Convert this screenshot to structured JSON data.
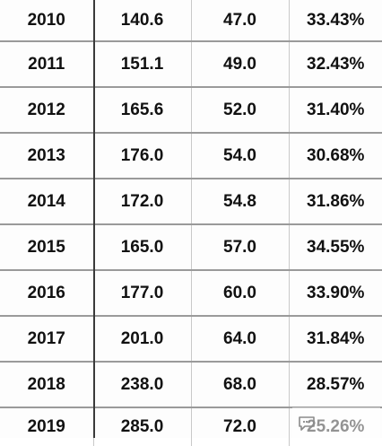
{
  "table": {
    "rows": [
      [
        "2010",
        "140.6",
        "47.0",
        "33.43%"
      ],
      [
        "2011",
        "151.1",
        "49.0",
        "32.43%"
      ],
      [
        "2012",
        "165.6",
        "52.0",
        "31.40%"
      ],
      [
        "2013",
        "176.0",
        "54.0",
        "30.68%"
      ],
      [
        "2014",
        "172.0",
        "54.8",
        "31.86%"
      ],
      [
        "2015",
        "165.0",
        "57.0",
        "34.55%"
      ],
      [
        "2016",
        "177.0",
        "60.0",
        "33.90%"
      ],
      [
        "2017",
        "201.0",
        "64.0",
        "31.84%"
      ],
      [
        "2018",
        "238.0",
        "68.0",
        "28.57%"
      ],
      [
        "2019",
        "285.0",
        "72.0",
        "25.26%"
      ]
    ]
  },
  "watermark": {
    "icon": "chat-bubble-icon",
    "color": "#8a8a8a"
  }
}
